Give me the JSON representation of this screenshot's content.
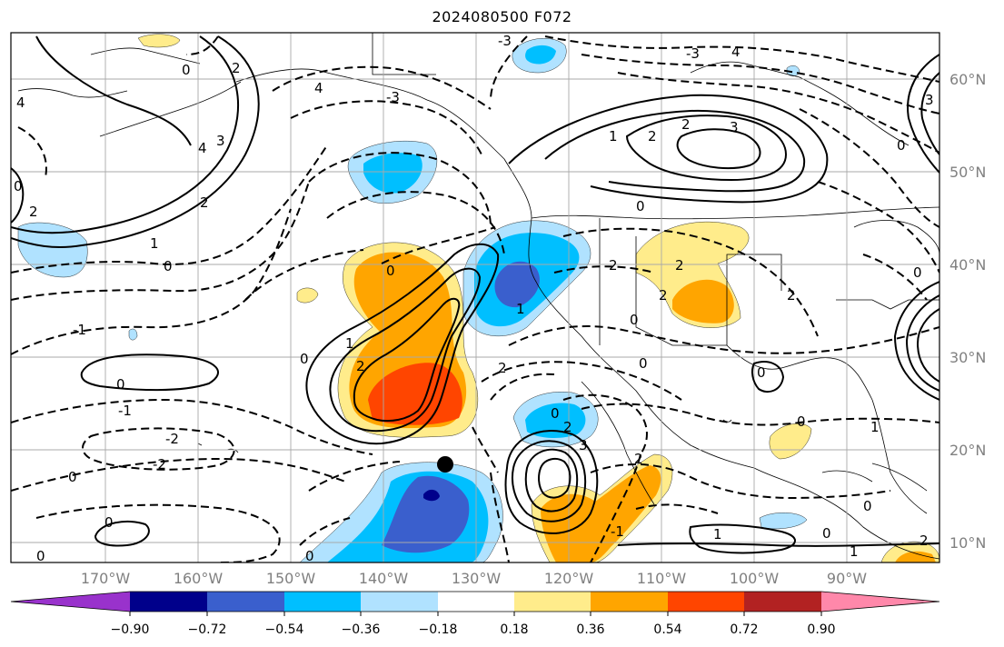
{
  "title": "2024080500 F072",
  "lat_labels": [
    "60°N",
    "50°N",
    "40°N",
    "30°N",
    "20°N",
    "10°N"
  ],
  "lon_labels": [
    "170°W",
    "160°W",
    "150°W",
    "140°W",
    "130°W",
    "120°W",
    "110°W",
    "100°W",
    "90°W"
  ],
  "colorbar": {
    "ticks": [
      "−0.90",
      "−0.72",
      "−0.54",
      "−0.36",
      "−0.18",
      "0.18",
      "0.36",
      "0.54",
      "0.72",
      "0.90"
    ],
    "colors": [
      "#9932cc",
      "#00008b",
      "#3a5fcd",
      "#00bfff",
      "#b0e2ff",
      "#ffffff",
      "#ffec8b",
      "#ffa500",
      "#ff4500",
      "#b22222",
      "#ff88aa"
    ]
  },
  "contour_labels": [
    "0",
    "1",
    "2",
    "3",
    "4",
    "-1",
    "-2",
    "-3"
  ],
  "marker": "storm-position"
}
